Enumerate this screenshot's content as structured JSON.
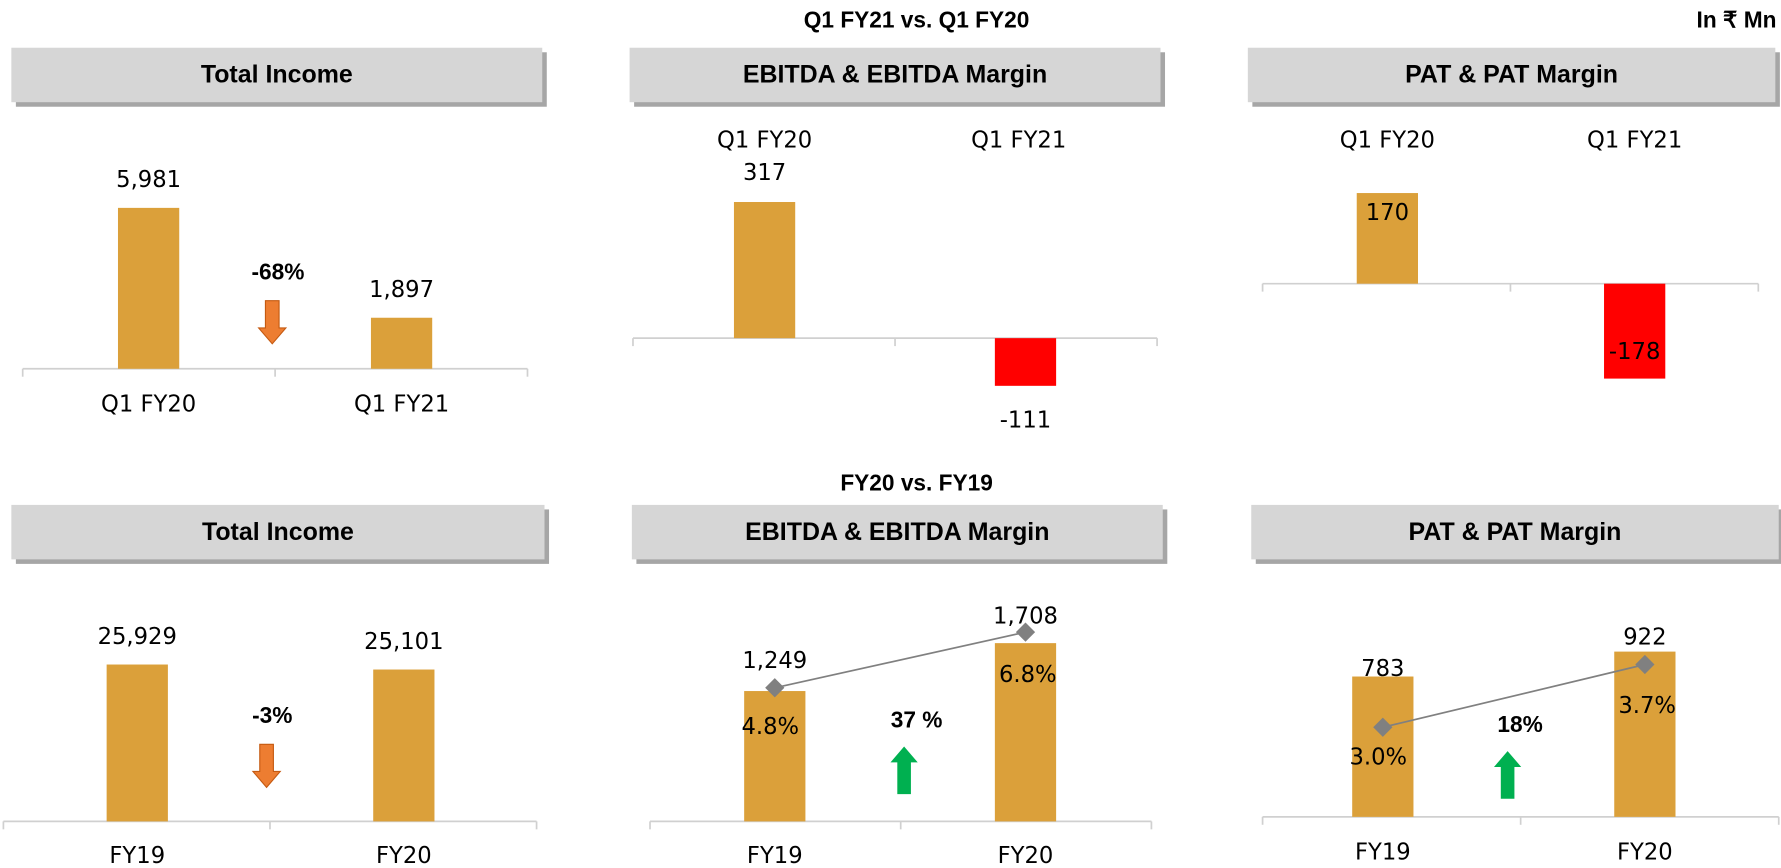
{
  "headings": {
    "top_section": "Q1 FY21  vs. Q1 FY20",
    "bottom_section": "FY20 vs. FY19",
    "unit_note": "In ₹ Mn"
  },
  "chart_data": [
    {
      "type": "bar",
      "title": "Total Income",
      "categories": [
        "Q1 FY20",
        "Q1 FY21"
      ],
      "values": [
        5981,
        1897
      ],
      "value_labels": [
        "5,981",
        "1,897"
      ],
      "colors": [
        "#dba03a",
        "#dba03a"
      ],
      "ylim": [
        0,
        7000
      ],
      "change": {
        "label": "-68%",
        "direction": "down",
        "color": "#ed7d31"
      }
    },
    {
      "type": "bar",
      "title": "EBITDA & EBITDA Margin",
      "categories": [
        "Q1 FY20",
        "Q1 FY21"
      ],
      "values": [
        317,
        -111
      ],
      "value_labels": [
        "317",
        "-111"
      ],
      "colors": [
        "#dba03a",
        "#ff0000"
      ],
      "ylim": [
        -150,
        350
      ]
    },
    {
      "type": "bar",
      "title": "PAT & PAT Margin",
      "categories": [
        "Q1 FY20",
        "Q1 FY21"
      ],
      "values": [
        170,
        -178
      ],
      "value_labels": [
        "170",
        "-178"
      ],
      "colors": [
        "#dba03a",
        "#ff0000"
      ],
      "ylim": [
        -200,
        200
      ]
    },
    {
      "type": "bar",
      "title": "Total Income",
      "categories": [
        "FY19",
        "FY20"
      ],
      "values": [
        25929,
        25101
      ],
      "value_labels": [
        "25,929",
        "25,101"
      ],
      "colors": [
        "#dba03a",
        "#dba03a"
      ],
      "ylim": [
        0,
        30000
      ],
      "change": {
        "label": "-3%",
        "direction": "down",
        "color": "#ed7d31"
      }
    },
    {
      "type": "bar",
      "title": "EBITDA & EBITDA Margin",
      "categories": [
        "FY19",
        "FY20"
      ],
      "values": [
        1249,
        1708
      ],
      "value_labels": [
        "1,249",
        "1,708"
      ],
      "colors": [
        "#dba03a",
        "#dba03a"
      ],
      "ylim": [
        0,
        2000
      ],
      "y2lim": [
        0,
        7.5
      ],
      "line": {
        "values": [
          4.8,
          6.8
        ],
        "value_labels": [
          "4.8%",
          "6.8%"
        ],
        "color": "#808080",
        "axis": "y2"
      },
      "change": {
        "label": "37 %",
        "direction": "up",
        "color": "#00b050"
      }
    },
    {
      "type": "bar",
      "title": "PAT & PAT Margin",
      "categories": [
        "FY19",
        "FY20"
      ],
      "values": [
        783,
        922
      ],
      "value_labels": [
        "783",
        "922"
      ],
      "colors": [
        "#dba03a",
        "#dba03a"
      ],
      "ylim": [
        0,
        1000
      ],
      "y2lim": [
        2,
        4
      ],
      "line": {
        "values": [
          3.0,
          3.7
        ],
        "value_labels": [
          "3.0%",
          "3.7%"
        ],
        "color": "#808080",
        "axis": "y2"
      },
      "change": {
        "label": "18%",
        "direction": "up",
        "color": "#00b050"
      }
    }
  ]
}
